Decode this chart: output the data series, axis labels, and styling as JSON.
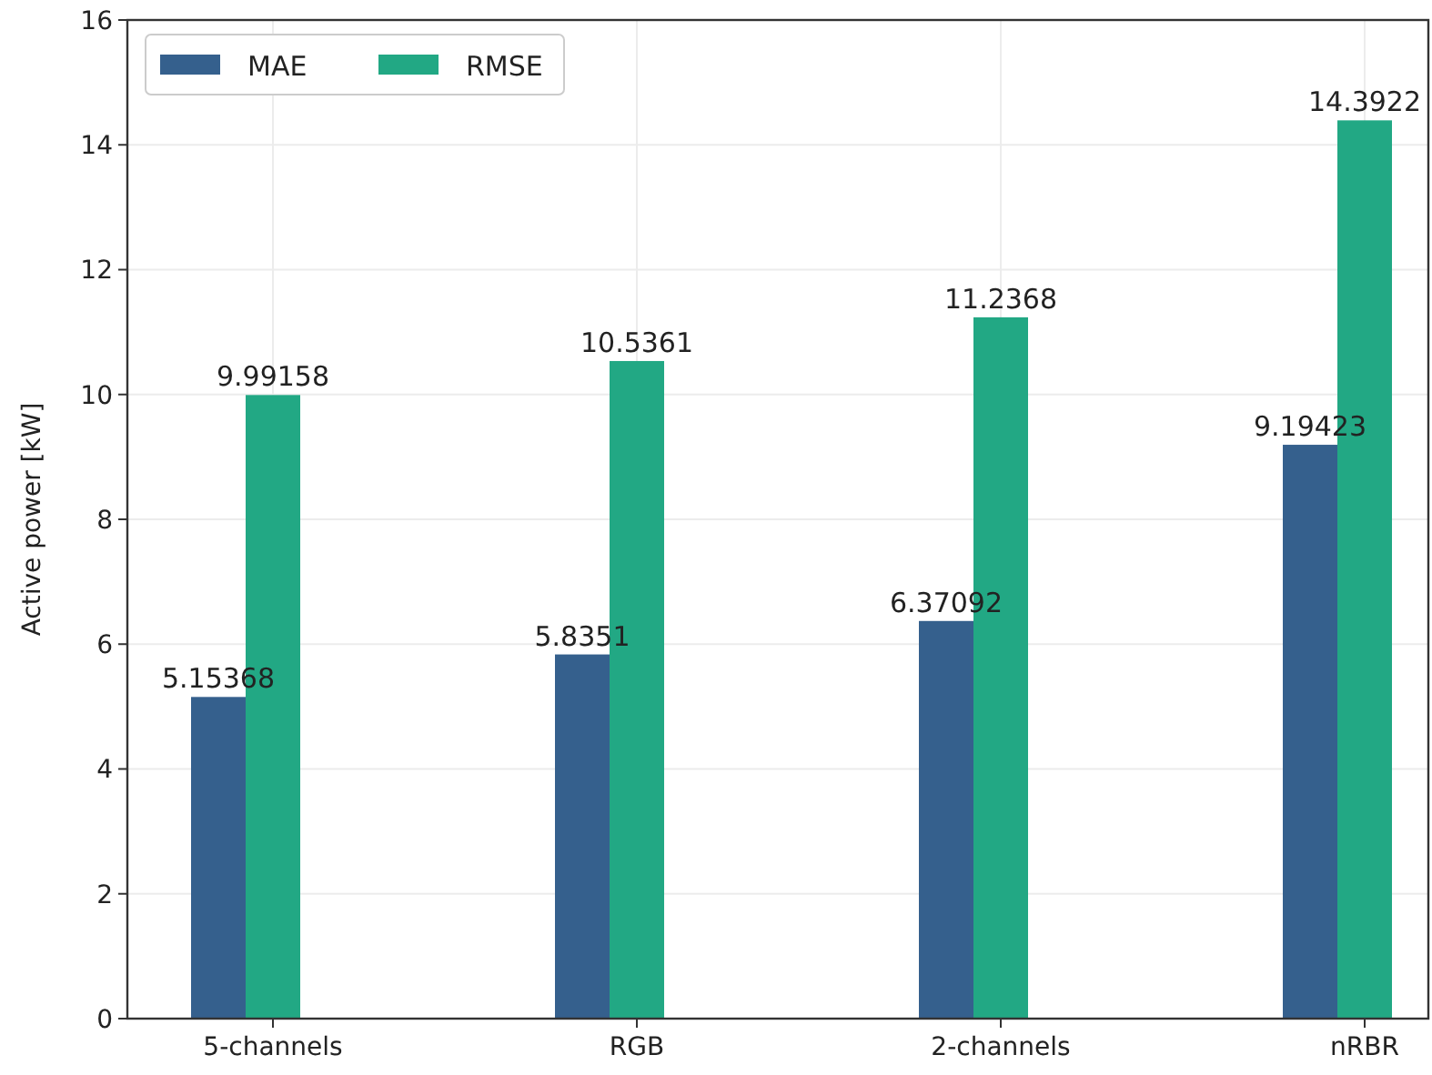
{
  "chart_data": {
    "type": "bar",
    "ylabel": "Active power [kW]",
    "categories": [
      "5-channels",
      "RGB",
      "2-channels",
      "nRBR"
    ],
    "series": [
      {
        "name": "MAE",
        "color": "#35608d",
        "values": [
          5.15368,
          5.8351,
          6.37092,
          9.19423
        ]
      },
      {
        "name": "RMSE",
        "color": "#22a884",
        "values": [
          9.99158,
          10.5361,
          11.2368,
          14.3922
        ]
      }
    ],
    "ylim": [
      0,
      16
    ],
    "yticks": [
      0,
      2,
      4,
      6,
      8,
      10,
      12,
      14,
      16
    ],
    "grid": true,
    "legend": "top left",
    "data_labels": true
  }
}
